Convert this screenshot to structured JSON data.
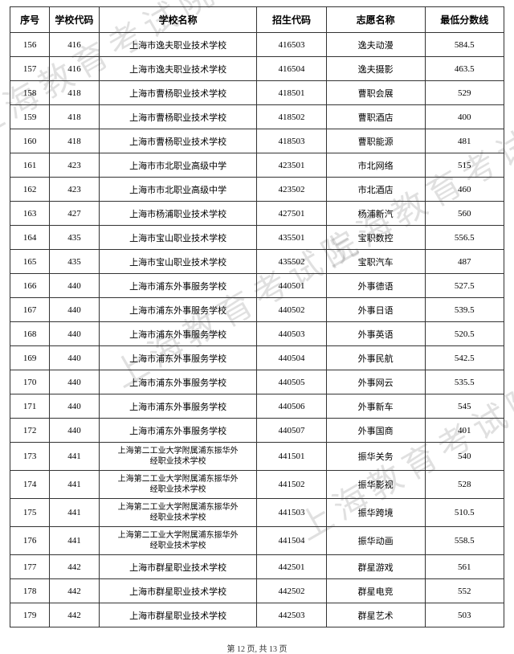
{
  "watermark_text": "上海教育考试院",
  "columns": [
    "序号",
    "学校代码",
    "学校名称",
    "招生代码",
    "志愿名称",
    "最低分数线"
  ],
  "rows": [
    [
      "156",
      "416",
      "上海市逸夫职业技术学校",
      "416503",
      "逸夫动漫",
      "584.5"
    ],
    [
      "157",
      "416",
      "上海市逸夫职业技术学校",
      "416504",
      "逸夫摄影",
      "463.5"
    ],
    [
      "158",
      "418",
      "上海市曹杨职业技术学校",
      "418501",
      "曹职会展",
      "529"
    ],
    [
      "159",
      "418",
      "上海市曹杨职业技术学校",
      "418502",
      "曹职酒店",
      "400"
    ],
    [
      "160",
      "418",
      "上海市曹杨职业技术学校",
      "418503",
      "曹职能源",
      "481"
    ],
    [
      "161",
      "423",
      "上海市市北职业高级中学",
      "423501",
      "市北网络",
      "515"
    ],
    [
      "162",
      "423",
      "上海市市北职业高级中学",
      "423502",
      "市北酒店",
      "460"
    ],
    [
      "163",
      "427",
      "上海市杨浦职业技术学校",
      "427501",
      "杨浦新汽",
      "560"
    ],
    [
      "164",
      "435",
      "上海市宝山职业技术学校",
      "435501",
      "宝职数控",
      "556.5"
    ],
    [
      "165",
      "435",
      "上海市宝山职业技术学校",
      "435502",
      "宝职汽车",
      "487"
    ],
    [
      "166",
      "440",
      "上海市浦东外事服务学校",
      "440501",
      "外事德语",
      "527.5"
    ],
    [
      "167",
      "440",
      "上海市浦东外事服务学校",
      "440502",
      "外事日语",
      "539.5"
    ],
    [
      "168",
      "440",
      "上海市浦东外事服务学校",
      "440503",
      "外事英语",
      "520.5"
    ],
    [
      "169",
      "440",
      "上海市浦东外事服务学校",
      "440504",
      "外事民航",
      "542.5"
    ],
    [
      "170",
      "440",
      "上海市浦东外事服务学校",
      "440505",
      "外事网云",
      "535.5"
    ],
    [
      "171",
      "440",
      "上海市浦东外事服务学校",
      "440506",
      "外事新车",
      "545"
    ],
    [
      "172",
      "440",
      "上海市浦东外事服务学校",
      "440507",
      "外事国商",
      "401"
    ],
    [
      "173",
      "441",
      "上海第二工业大学附属浦东振华外\n经职业技术学校",
      "441501",
      "振华关务",
      "540"
    ],
    [
      "174",
      "441",
      "上海第二工业大学附属浦东振华外\n经职业技术学校",
      "441502",
      "振华影视",
      "528"
    ],
    [
      "175",
      "441",
      "上海第二工业大学附属浦东振华外\n经职业技术学校",
      "441503",
      "振华跨境",
      "510.5"
    ],
    [
      "176",
      "441",
      "上海第二工业大学附属浦东振华外\n经职业技术学校",
      "441504",
      "振华动画",
      "558.5"
    ],
    [
      "177",
      "442",
      "上海市群星职业技术学校",
      "442501",
      "群星游戏",
      "561"
    ],
    [
      "178",
      "442",
      "上海市群星职业技术学校",
      "442502",
      "群星电竞",
      "552"
    ],
    [
      "179",
      "442",
      "上海市群星职业技术学校",
      "442503",
      "群星艺术",
      "503"
    ]
  ],
  "footer": "第 12 页, 共 13 页",
  "col_classes": [
    "col-seq",
    "col-scode",
    "col-sname",
    "col-acode",
    "col-vname",
    "col-score"
  ]
}
